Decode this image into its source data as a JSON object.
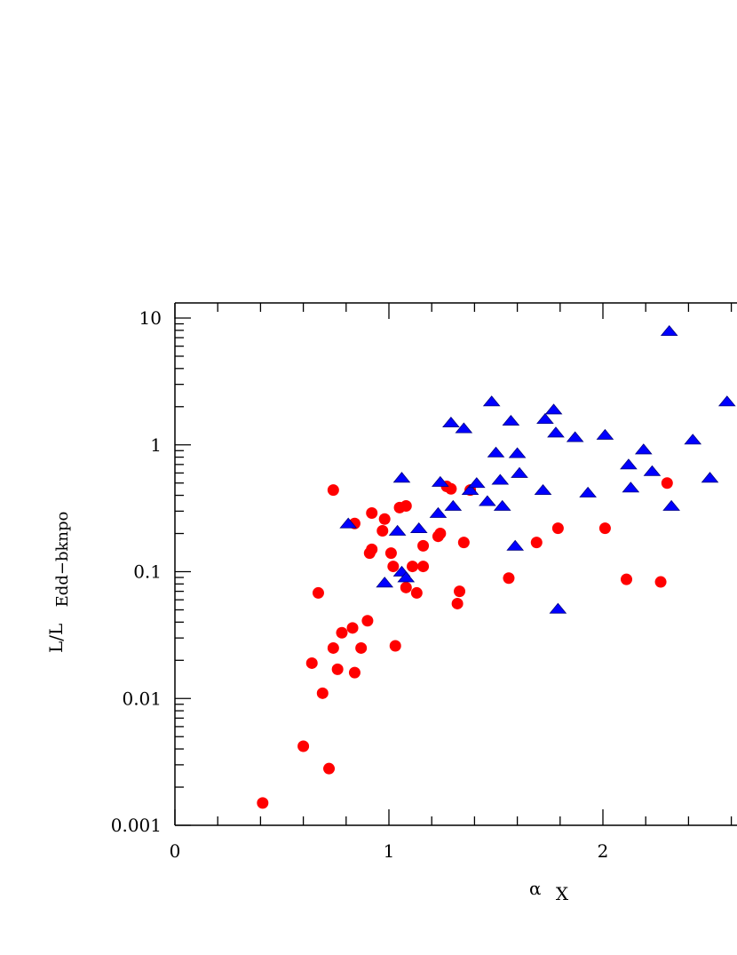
{
  "chart_data": {
    "type": "scatter",
    "x_scale": "linear",
    "y_scale": "log",
    "xlim": [
      0,
      2.6
    ],
    "ylim": [
      0.001,
      10
    ],
    "xlabel_symbol": "α",
    "xlabel_sub": "X",
    "ylabel_main": "L/L",
    "ylabel_sub": "Edd−bknpo",
    "x_ticks": [
      {
        "v": 0,
        "label": "0"
      },
      {
        "v": 1,
        "label": "1"
      },
      {
        "v": 2,
        "label": "2"
      }
    ],
    "y_ticks": [
      {
        "v": 0.001,
        "label": "0.001"
      },
      {
        "v": 0.01,
        "label": "0.01"
      },
      {
        "v": 0.1,
        "label": "0.1"
      },
      {
        "v": 1,
        "label": "1"
      },
      {
        "v": 10,
        "label": "10"
      }
    ],
    "series": [
      {
        "marker": "circle",
        "color": "#ff0000",
        "points": [
          [
            0.41,
            0.0015
          ],
          [
            0.6,
            0.0042
          ],
          [
            0.64,
            0.019
          ],
          [
            0.67,
            0.068
          ],
          [
            0.69,
            0.011
          ],
          [
            0.72,
            0.0028
          ],
          [
            0.74,
            0.025
          ],
          [
            0.74,
            0.44
          ],
          [
            0.76,
            0.017
          ],
          [
            0.78,
            0.033
          ],
          [
            0.83,
            0.036
          ],
          [
            0.84,
            0.016
          ],
          [
            0.84,
            0.24
          ],
          [
            0.87,
            0.025
          ],
          [
            0.9,
            0.041
          ],
          [
            0.91,
            0.14
          ],
          [
            0.92,
            0.15
          ],
          [
            0.92,
            0.29
          ],
          [
            0.97,
            0.21
          ],
          [
            0.98,
            0.26
          ],
          [
            1.01,
            0.14
          ],
          [
            1.02,
            0.11
          ],
          [
            1.03,
            0.026
          ],
          [
            1.05,
            0.32
          ],
          [
            1.08,
            0.33
          ],
          [
            1.08,
            0.075
          ],
          [
            1.11,
            0.11
          ],
          [
            1.13,
            0.068
          ],
          [
            1.16,
            0.16
          ],
          [
            1.16,
            0.11
          ],
          [
            1.23,
            0.19
          ],
          [
            1.24,
            0.2
          ],
          [
            1.27,
            0.47
          ],
          [
            1.29,
            0.45
          ],
          [
            1.32,
            0.056
          ],
          [
            1.33,
            0.07
          ],
          [
            1.35,
            0.17
          ],
          [
            1.38,
            0.44
          ],
          [
            1.56,
            0.089
          ],
          [
            1.69,
            0.17
          ],
          [
            1.79,
            0.22
          ],
          [
            2.01,
            0.22
          ],
          [
            2.11,
            0.087
          ],
          [
            2.27,
            0.083
          ],
          [
            2.3,
            0.5
          ]
        ]
      },
      {
        "marker": "triangle",
        "color": "#0000ff",
        "points": [
          [
            0.81,
            0.24
          ],
          [
            0.98,
            0.082
          ],
          [
            1.04,
            0.21
          ],
          [
            1.06,
            0.55
          ],
          [
            1.06,
            0.1
          ],
          [
            1.08,
            0.09
          ],
          [
            1.14,
            0.22
          ],
          [
            1.23,
            0.29
          ],
          [
            1.24,
            0.51
          ],
          [
            1.29,
            1.5
          ],
          [
            1.3,
            0.33
          ],
          [
            1.35,
            1.35
          ],
          [
            1.38,
            0.44
          ],
          [
            1.41,
            0.5
          ],
          [
            1.46,
            0.36
          ],
          [
            1.48,
            2.2
          ],
          [
            1.5,
            0.87
          ],
          [
            1.52,
            0.53
          ],
          [
            1.53,
            0.33
          ],
          [
            1.57,
            1.55
          ],
          [
            1.59,
            0.16
          ],
          [
            1.6,
            0.86
          ],
          [
            1.61,
            0.6
          ],
          [
            1.72,
            0.44
          ],
          [
            1.73,
            1.6
          ],
          [
            1.77,
            1.9
          ],
          [
            1.78,
            1.25
          ],
          [
            1.79,
            0.051
          ],
          [
            1.87,
            1.15
          ],
          [
            1.93,
            0.42
          ],
          [
            2.01,
            1.2
          ],
          [
            2.12,
            0.7
          ],
          [
            2.13,
            0.46
          ],
          [
            2.19,
            0.92
          ],
          [
            2.23,
            0.62
          ],
          [
            2.31,
            7.9
          ],
          [
            2.32,
            0.33
          ],
          [
            2.42,
            1.1
          ],
          [
            2.5,
            0.55
          ],
          [
            2.58,
            2.2
          ]
        ]
      }
    ]
  }
}
